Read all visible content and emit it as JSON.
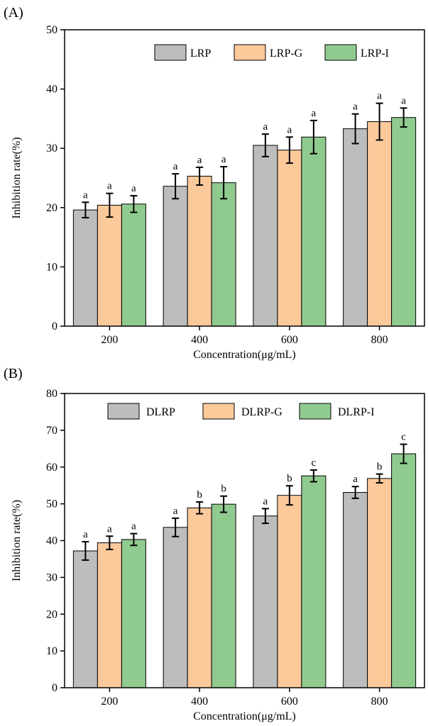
{
  "chart_data": [
    {
      "panel": "(A)",
      "type": "bar",
      "title": "",
      "xlabel": "Concentration(μg/mL)",
      "ylabel": "Inhibition rate(%)",
      "categories": [
        "200",
        "400",
        "600",
        "800"
      ],
      "ylim": [
        0,
        50
      ],
      "yticks": [
        "0",
        "10",
        "20",
        "30",
        "40",
        "50"
      ],
      "legend_position": "top-right",
      "grid": false,
      "series": [
        {
          "name": "LRP",
          "color": "#bdbdbd",
          "values": [
            19.6,
            23.6,
            30.5,
            33.3
          ],
          "errors": [
            1.3,
            2.1,
            1.9,
            2.5
          ],
          "labels": [
            "a",
            "a",
            "a",
            "a"
          ]
        },
        {
          "name": "LRP-G",
          "color": "#fcc99b",
          "values": [
            20.4,
            25.3,
            29.7,
            34.5
          ],
          "errors": [
            2.0,
            1.5,
            2.2,
            3.1
          ],
          "labels": [
            "a",
            "a",
            "a",
            "a"
          ]
        },
        {
          "name": "LRP-I",
          "color": "#8fca8f",
          "values": [
            20.6,
            24.2,
            31.9,
            35.2
          ],
          "errors": [
            1.4,
            2.7,
            2.8,
            1.6
          ],
          "labels": [
            "a",
            "a",
            "a",
            "a"
          ]
        }
      ]
    },
    {
      "panel": "(B)",
      "type": "bar",
      "title": "",
      "xlabel": "Concentration(μg/mL)",
      "ylabel": "Inhibition rate(%)",
      "categories": [
        "200",
        "400",
        "600",
        "800"
      ],
      "ylim": [
        0,
        80
      ],
      "yticks": [
        "0",
        "10",
        "20",
        "30",
        "40",
        "50",
        "60",
        "70",
        "80"
      ],
      "legend_position": "top-right",
      "grid": false,
      "series": [
        {
          "name": "DLRP",
          "color": "#bdbdbd",
          "values": [
            37.2,
            43.6,
            46.7,
            53.1
          ],
          "errors": [
            2.5,
            2.5,
            2.0,
            1.6
          ],
          "labels": [
            "a",
            "a",
            "a",
            "a"
          ]
        },
        {
          "name": "DLRP-G",
          "color": "#fcc99b",
          "values": [
            39.4,
            48.9,
            52.3,
            56.9
          ],
          "errors": [
            1.8,
            1.6,
            2.6,
            1.2
          ],
          "labels": [
            "a",
            "b",
            "b",
            "b"
          ]
        },
        {
          "name": "DLRP-I",
          "color": "#8fca8f",
          "values": [
            40.3,
            49.9,
            57.6,
            63.6
          ],
          "errors": [
            1.6,
            2.2,
            1.6,
            2.6
          ],
          "labels": [
            "a",
            "b",
            "c",
            "c"
          ]
        }
      ]
    }
  ]
}
